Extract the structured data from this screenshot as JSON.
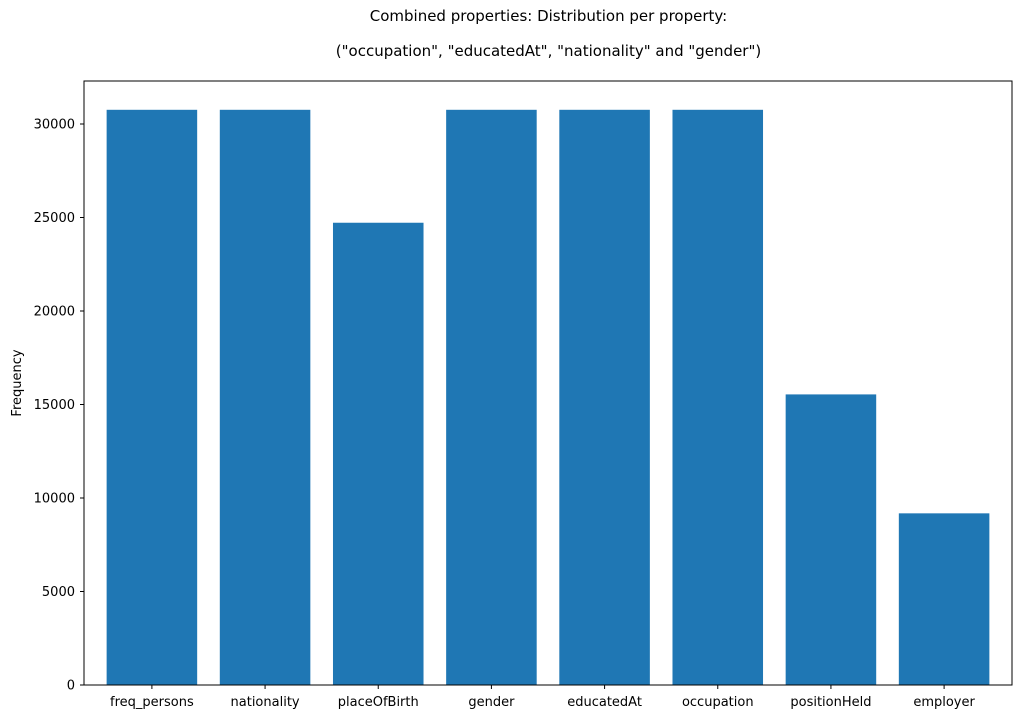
{
  "chart_data": {
    "type": "bar",
    "title_lines": [
      "Combined properties: Distribution per property:",
      "(\"occupation\", \"educatedAt\", \"nationality\" and \"gender\")"
    ],
    "xlabel": "",
    "ylabel": "Frequency",
    "categories": [
      "freq_persons",
      "nationality",
      "placeOfBirth",
      "gender",
      "educatedAt",
      "occupation",
      "positionHeld",
      "employer"
    ],
    "values": [
      30760,
      30760,
      24720,
      30760,
      30760,
      30760,
      15540,
      9180
    ],
    "ylim": [
      0,
      32300
    ],
    "yticks": [
      0,
      5000,
      10000,
      15000,
      20000,
      25000,
      30000
    ],
    "bar_color": "#1f77b4",
    "grid": false,
    "legend": false
  }
}
